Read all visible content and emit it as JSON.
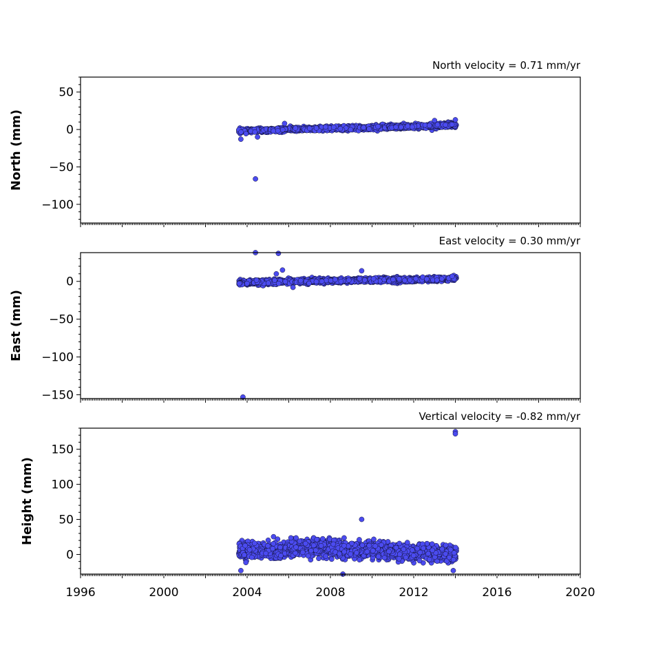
{
  "chart_data": [
    {
      "type": "scatter",
      "title": "North velocity = 0.71 mm/yr",
      "ylabel": "North (mm)",
      "xlim": [
        1996,
        2020
      ],
      "ylim": [
        -125,
        70
      ],
      "yticks": [
        50,
        0,
        -50,
        -100
      ],
      "ytick_labels": [
        "50",
        "0",
        "−50",
        "−100"
      ],
      "xtick_labels_shown": false,
      "marker_color": "#4b4bf0",
      "series": [
        {
          "segments": [
            {
              "x_start": 2003.6,
              "x_end": 2005.1,
              "y_start": -2,
              "y_end": -1,
              "spread": 2.5
            },
            {
              "x_start": 2005.1,
              "x_end": 2006.2,
              "y_start": -1,
              "y_end": 1,
              "spread": 2.5
            },
            {
              "x_start": 2006.2,
              "x_end": 2010.8,
              "y_start": 0,
              "y_end": 3,
              "spread": 2.5
            },
            {
              "x_start": 2010.8,
              "x_end": 2014.05,
              "y_start": 3,
              "y_end": 6,
              "spread": 2.5
            }
          ],
          "outliers": [
            {
              "x": 2004.4,
              "y": -66
            },
            {
              "x": 2003.7,
              "y": -13
            },
            {
              "x": 2004.5,
              "y": -10
            },
            {
              "x": 2013.0,
              "y": 12
            },
            {
              "x": 2014.0,
              "y": 13
            },
            {
              "x": 2005.8,
              "y": 8
            }
          ]
        }
      ]
    },
    {
      "type": "scatter",
      "title": "East velocity = 0.30 mm/yr",
      "ylabel": "East (mm)",
      "xlim": [
        1996,
        2020
      ],
      "ylim": [
        -155,
        38
      ],
      "yticks": [
        0,
        -50,
        -100,
        -150
      ],
      "ytick_labels": [
        "0",
        "−50",
        "−100",
        "−150"
      ],
      "xtick_labels_shown": false,
      "marker_color": "#4b4bf0",
      "series": [
        {
          "segments": [
            {
              "x_start": 2003.6,
              "x_end": 2006.3,
              "y_start": -2,
              "y_end": 0,
              "spread": 3
            },
            {
              "x_start": 2006.3,
              "x_end": 2010.8,
              "y_start": 0,
              "y_end": 2,
              "spread": 2.5
            },
            {
              "x_start": 2010.8,
              "x_end": 2014.05,
              "y_start": 1,
              "y_end": 4,
              "spread": 2.5
            }
          ],
          "outliers": [
            {
              "x": 2004.4,
              "y": 38
            },
            {
              "x": 2005.5,
              "y": 37
            },
            {
              "x": 2003.8,
              "y": -153
            },
            {
              "x": 2005.7,
              "y": 15
            },
            {
              "x": 2009.5,
              "y": 14
            },
            {
              "x": 2005.4,
              "y": 10
            },
            {
              "x": 2006.2,
              "y": -8
            }
          ]
        }
      ]
    },
    {
      "type": "scatter",
      "title": "Vertical velocity = -0.82 mm/yr",
      "ylabel": "Height (mm)",
      "xlim": [
        1996,
        2020
      ],
      "ylim": [
        -28,
        180
      ],
      "yticks": [
        150,
        100,
        50,
        0
      ],
      "ytick_labels": [
        "150",
        "100",
        "50",
        "0"
      ],
      "xticks": [
        1996,
        2000,
        2004,
        2008,
        2012,
        2016,
        2020
      ],
      "xtick_labels": [
        "1996",
        "2000",
        "2004",
        "2008",
        "2012",
        "2016",
        "2020"
      ],
      "xtick_labels_shown": true,
      "marker_color": "#4b4bf0",
      "series": [
        {
          "segments": [
            {
              "x_start": 2003.6,
              "x_end": 2006.0,
              "y_start": 5,
              "y_end": 8,
              "spread": 11
            },
            {
              "x_start": 2006.0,
              "x_end": 2010.8,
              "y_start": 10,
              "y_end": 6,
              "spread": 11
            },
            {
              "x_start": 2010.8,
              "x_end": 2014.05,
              "y_start": 4,
              "y_end": 1,
              "spread": 10
            }
          ],
          "outliers": [
            {
              "x": 2014.0,
              "y": 175
            },
            {
              "x": 2014.0,
              "y": 172
            },
            {
              "x": 2009.5,
              "y": 50
            },
            {
              "x": 2008.6,
              "y": -28
            },
            {
              "x": 2003.7,
              "y": -23
            },
            {
              "x": 2013.9,
              "y": -23
            }
          ]
        }
      ]
    }
  ]
}
